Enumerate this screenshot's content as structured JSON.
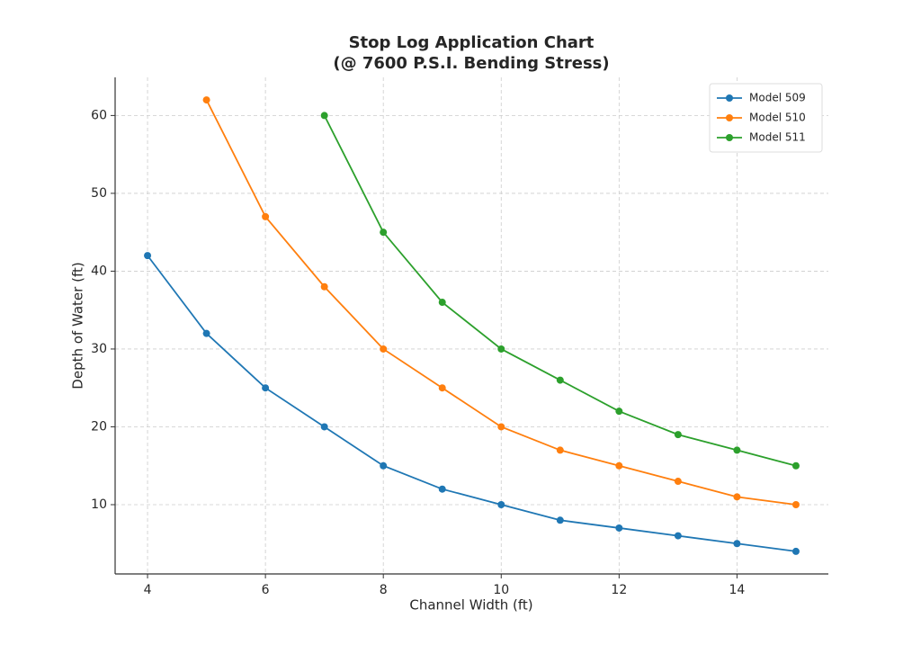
{
  "chart_data": {
    "type": "line",
    "title": [
      "Stop Log Application Chart",
      "(@ 7600 P.S.I. Bending Stress)"
    ],
    "xlabel": "Channel Width (ft)",
    "ylabel": "Depth of Water (ft)",
    "x": [
      4,
      5,
      6,
      7,
      8,
      9,
      10,
      11,
      12,
      13,
      14,
      15
    ],
    "series": [
      {
        "name": "Model 509",
        "color": "#1f77b4",
        "values": [
          42,
          32,
          25,
          20,
          15,
          12,
          10,
          8,
          7,
          6,
          5,
          4
        ]
      },
      {
        "name": "Model 510",
        "color": "#ff7f0e",
        "values": [
          null,
          62,
          47,
          38,
          30,
          25,
          20,
          17,
          15,
          13,
          11,
          10
        ]
      },
      {
        "name": "Model 511",
        "color": "#2ca02c",
        "values": [
          null,
          null,
          null,
          60,
          45,
          36,
          30,
          26,
          22,
          19,
          17,
          15
        ]
      }
    ],
    "xlim": [
      3.45,
      15.55
    ],
    "ylim": [
      1.1,
      64.9
    ],
    "xticks": [
      4,
      6,
      8,
      10,
      12,
      14
    ],
    "yticks": [
      10,
      20,
      30,
      40,
      50,
      60
    ],
    "grid": true,
    "legend": "upper-right"
  }
}
